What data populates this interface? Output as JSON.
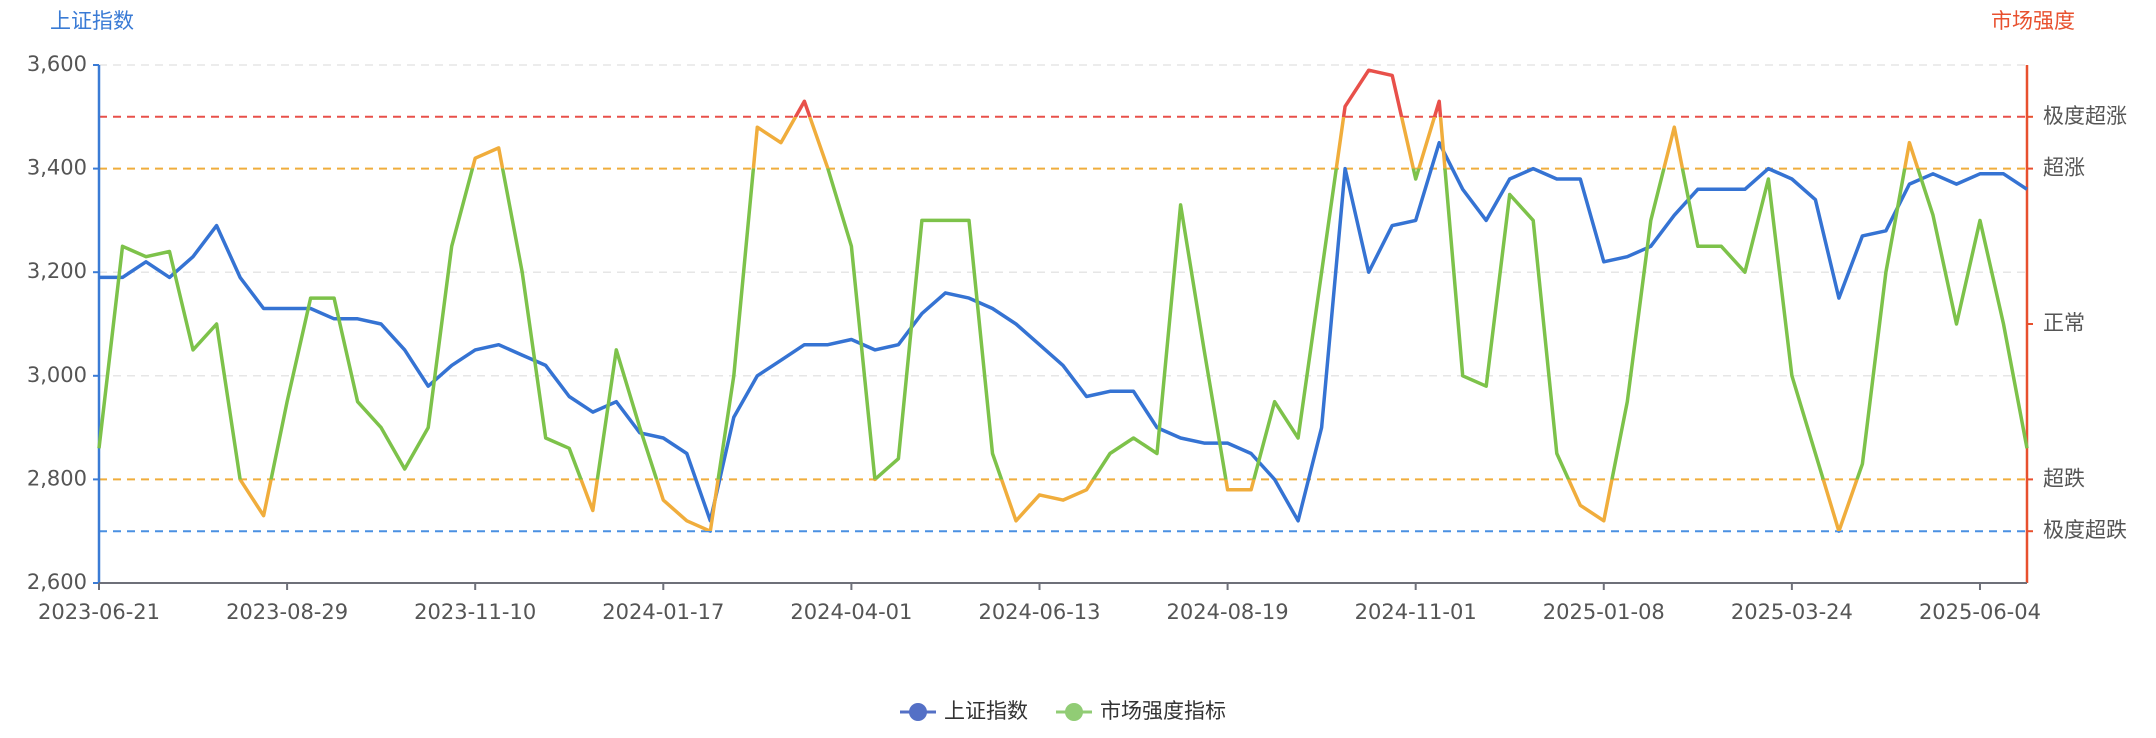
{
  "chart_data": {
    "type": "line",
    "y_axis_title": "上证指数",
    "y2_axis_title": "市场强度",
    "categories": [
      "2023-06-21",
      null,
      null,
      null,
      null,
      null,
      null,
      null,
      "2023-08-29",
      null,
      null,
      null,
      null,
      null,
      null,
      null,
      "2023-11-10",
      null,
      null,
      null,
      null,
      null,
      null,
      null,
      "2024-01-17",
      null,
      null,
      null,
      null,
      null,
      null,
      null,
      "2024-04-01",
      null,
      null,
      null,
      null,
      null,
      null,
      null,
      "2024-06-13",
      null,
      null,
      null,
      null,
      null,
      null,
      null,
      "2024-08-19",
      null,
      null,
      null,
      null,
      null,
      null,
      null,
      "2024-11-01",
      null,
      null,
      null,
      null,
      null,
      null,
      null,
      "2025-01-08",
      null,
      null,
      null,
      null,
      null,
      null,
      null,
      "2025-03-24",
      null,
      null,
      null,
      null,
      null,
      null,
      null,
      "2025-06-04",
      null,
      null
    ],
    "series": [
      {
        "name": "上证指数",
        "color": "#3573d3",
        "legend_color": "#5470c6",
        "values": [
          3190,
          3190,
          3220,
          3190,
          3230,
          3290,
          3190,
          3130,
          3130,
          3130,
          3110,
          3110,
          3100,
          3050,
          2980,
          3020,
          3050,
          3060,
          3040,
          3020,
          2960,
          2930,
          2950,
          2890,
          2880,
          2850,
          2720,
          2920,
          3000,
          3030,
          3060,
          3060,
          3070,
          3050,
          3060,
          3120,
          3160,
          3150,
          3130,
          3100,
          3060,
          3020,
          2960,
          2970,
          2970,
          2900,
          2880,
          2870,
          2870,
          2850,
          2800,
          2720,
          2900,
          3400,
          3200,
          3290,
          3300,
          3450,
          3360,
          3300,
          3380,
          3400,
          3380,
          3380,
          3220,
          3230,
          3250,
          3310,
          3360,
          3360,
          3360,
          3400,
          3380,
          3340,
          3150,
          3270,
          3280,
          3370,
          3390,
          3370,
          3390,
          3390,
          3360
        ]
      },
      {
        "name": "市场强度指标",
        "color": "#7dc24a",
        "legend_color": "#91cc75",
        "axis": "y2",
        "values": [
          26,
          65,
          63,
          64,
          45,
          50,
          20,
          13,
          35,
          55,
          55,
          35,
          30,
          22,
          30,
          65,
          82,
          84,
          60,
          28,
          26,
          14,
          45,
          30,
          16,
          12,
          10,
          40,
          88,
          85,
          93,
          80,
          65,
          20,
          24,
          70,
          70,
          70,
          25,
          12,
          17,
          16,
          18,
          25,
          28,
          25,
          73,
          45,
          18,
          18,
          35,
          28,
          60,
          92,
          99,
          98,
          78,
          93,
          40,
          38,
          75,
          70,
          25,
          15,
          12,
          35,
          70,
          88,
          65,
          65,
          60,
          78,
          40,
          25,
          10,
          23,
          60,
          85,
          71,
          50,
          70,
          50,
          26
        ]
      }
    ],
    "ylim": [
      2600,
      3600
    ],
    "yticks": [
      {
        "value": 2600,
        "label": "2,600"
      },
      {
        "value": 2800,
        "label": "2,800"
      },
      {
        "value": 3000,
        "label": "3,000"
      },
      {
        "value": 3200,
        "label": "3,200"
      },
      {
        "value": 3400,
        "label": "3,400"
      },
      {
        "value": 3600,
        "label": "3,600"
      }
    ],
    "y2lim": [
      0,
      100
    ],
    "y2ticks": [
      {
        "value": 10,
        "label": "极度超跌"
      },
      {
        "value": 20,
        "label": "超跌"
      },
      {
        "value": 50,
        "label": "正常"
      },
      {
        "value": 80,
        "label": "超涨"
      },
      {
        "value": 90,
        "label": "极度超涨"
      }
    ],
    "mark_lines": [
      {
        "value": 90,
        "color": "#e8504a"
      },
      {
        "value": 80,
        "color": "#f0ad3c"
      },
      {
        "value": 20,
        "color": "#f0ad3c"
      },
      {
        "value": 10,
        "color": "#4a90e2"
      }
    ],
    "visual_map": [
      {
        "min": 90,
        "color": "#e8504a"
      },
      {
        "min": 80,
        "max": 90,
        "color": "#f0ad3c"
      },
      {
        "min": 20,
        "max": 80,
        "color": "#7dc24a"
      },
      {
        "min": 10,
        "max": 20,
        "color": "#f0ad3c"
      },
      {
        "max": 10,
        "color": "#4a90e2"
      }
    ],
    "y_axis_color": "#3a7bd5",
    "y2_axis_color": "#e8502e",
    "grid": true
  }
}
